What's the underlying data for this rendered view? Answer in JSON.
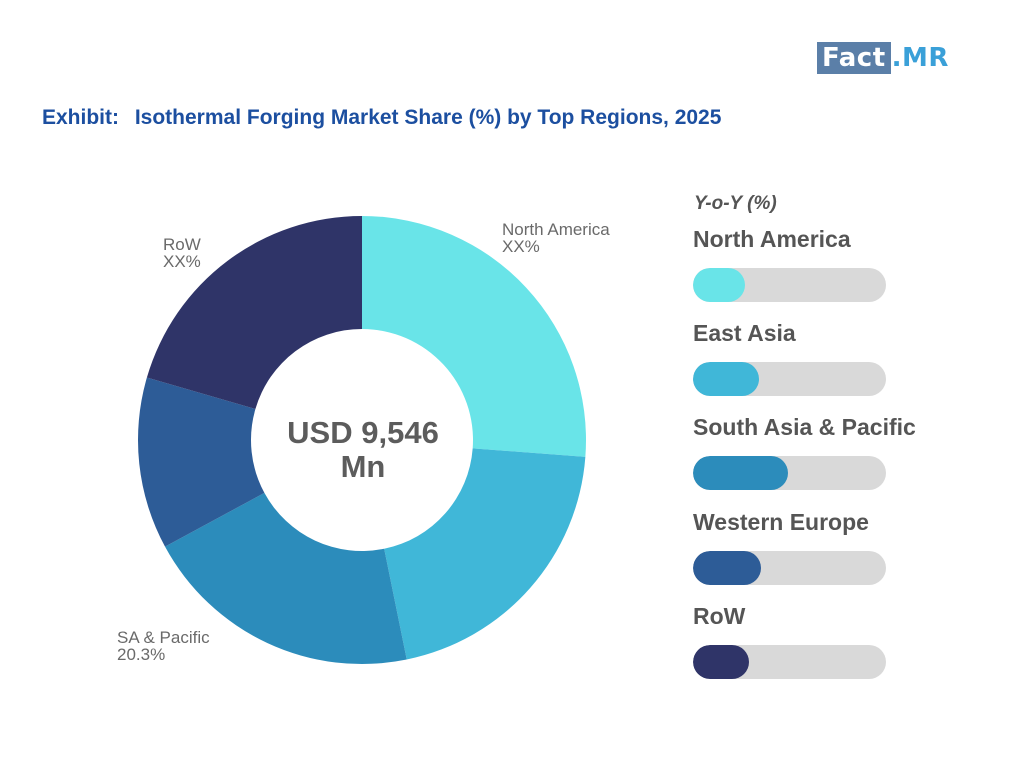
{
  "logo": {
    "boxed": "Fact",
    "rest": ".MR"
  },
  "header": {
    "exhibit": "Exhibit:",
    "title": "Isothermal Forging Market Share (%) by Top Regions, 2025"
  },
  "chart_data": [
    {
      "type": "donut",
      "center_label": [
        "USD 9,546",
        "Mn"
      ],
      "slices": [
        {
          "label": "North America",
          "value_label": "XX%",
          "value": 26.2,
          "color": "#69e4e8"
        },
        {
          "label": "",
          "value_label": "",
          "value": 20.6,
          "color": "#40b7d8"
        },
        {
          "label": "SA & Pacific",
          "value_label": "20.3%",
          "value": 20.3,
          "color": "#2c8cbb"
        },
        {
          "label": "",
          "value_label": "",
          "value": 12.4,
          "color": "#2d5c97"
        },
        {
          "label": "RoW",
          "value_label": "XX%",
          "value": 20.5,
          "color": "#2f3468"
        }
      ]
    },
    {
      "type": "bar",
      "title": "Y-o-Y (%)",
      "orientation": "horizontal",
      "categories": [
        "North America",
        "East Asia",
        "South Asia & Pacific",
        "Western Europe",
        "RoW"
      ],
      "values": [
        27,
        34,
        49,
        35,
        29
      ],
      "scale_max": 100,
      "colors": [
        "#69e4e8",
        "#40b7d8",
        "#2c8cbb",
        "#2d5c97",
        "#2f3468"
      ],
      "track_color": "#d9d9d9"
    }
  ]
}
